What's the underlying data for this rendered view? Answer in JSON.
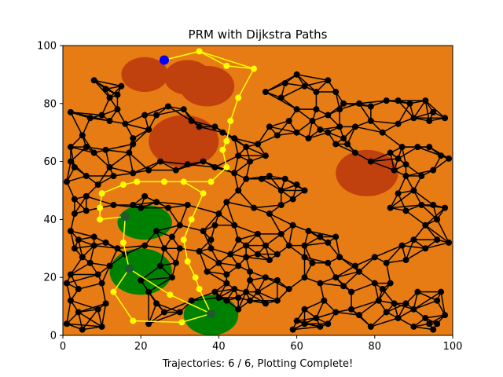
{
  "chart_data": {
    "type": "scatter",
    "title": "PRM with Dijkstra Paths",
    "xlabel": "Trajectories: 6 / 6, Plotting Complete!",
    "ylabel": "",
    "xlim": [
      0,
      100
    ],
    "ylim": [
      0,
      100
    ],
    "x_ticks": [
      "0",
      "20",
      "40",
      "60",
      "80",
      "100"
    ],
    "y_ticks": [
      "0",
      "20",
      "40",
      "60",
      "80",
      "100"
    ],
    "grid": false,
    "colors": {
      "background": "#e67c13",
      "obstacle": "#c0410e",
      "goal_region": "#008000",
      "roadmap": "#000000",
      "path": "#ffff00",
      "start": "#0000ff",
      "goal_node": "#1f5a2e"
    },
    "obstacles": [
      {
        "cx": 21,
        "cy": 90,
        "rx": 6,
        "ry": 6
      },
      {
        "cx": 32,
        "cy": 89,
        "rx": 6,
        "ry": 6
      },
      {
        "cx": 37,
        "cy": 86,
        "rx": 7,
        "ry": 7
      },
      {
        "cx": 31,
        "cy": 67,
        "rx": 9,
        "ry": 9
      },
      {
        "cx": 78,
        "cy": 56,
        "rx": 8,
        "ry": 8
      }
    ],
    "goal_regions": [
      {
        "cx": 21,
        "cy": 39,
        "rx": 7,
        "ry": 6
      },
      {
        "cx": 20,
        "cy": 22,
        "rx": 8,
        "ry": 8
      },
      {
        "cx": 38,
        "cy": 7,
        "rx": 7,
        "ry": 7
      }
    ],
    "start": {
      "x": 26,
      "y": 95
    },
    "goals": [
      {
        "x": 16,
        "y": 41
      },
      {
        "x": 17,
        "y": 23
      },
      {
        "x": 38,
        "y": 7.5
      }
    ],
    "path_nodes": [
      {
        "x": 26,
        "y": 95
      },
      {
        "x": 35,
        "y": 98
      },
      {
        "x": 42,
        "y": 93
      },
      {
        "x": 49,
        "y": 92
      },
      {
        "x": 45,
        "y": 82
      },
      {
        "x": 43,
        "y": 74
      },
      {
        "x": 42,
        "y": 67
      },
      {
        "x": 41,
        "y": 64
      },
      {
        "x": 42,
        "y": 58
      },
      {
        "x": 38,
        "y": 53
      },
      {
        "x": 31,
        "y": 53
      },
      {
        "x": 26,
        "y": 53
      },
      {
        "x": 19,
        "y": 53
      },
      {
        "x": 15.5,
        "y": 52
      },
      {
        "x": 10,
        "y": 49
      },
      {
        "x": 9.5,
        "y": 44
      },
      {
        "x": 9.5,
        "y": 40
      },
      {
        "x": 36,
        "y": 49
      },
      {
        "x": 33,
        "y": 40
      },
      {
        "x": 31,
        "y": 33
      },
      {
        "x": 32,
        "y": 25.5
      },
      {
        "x": 34,
        "y": 20
      },
      {
        "x": 35,
        "y": 16
      },
      {
        "x": 27.5,
        "y": 14
      },
      {
        "x": 15.5,
        "y": 32
      },
      {
        "x": 13,
        "y": 15
      },
      {
        "x": 18,
        "y": 5
      },
      {
        "x": 30.5,
        "y": 4.5
      }
    ],
    "paths": [
      [
        [
          26,
          95
        ],
        [
          35,
          98
        ],
        [
          42,
          93
        ],
        [
          49,
          92
        ],
        [
          45,
          82
        ],
        [
          43,
          74
        ],
        [
          42,
          67
        ],
        [
          41,
          64
        ],
        [
          42,
          58
        ],
        [
          38,
          53
        ],
        [
          31,
          53
        ],
        [
          26,
          53
        ],
        [
          19,
          53
        ],
        [
          15.5,
          52
        ],
        [
          10,
          49
        ],
        [
          9.5,
          44
        ],
        [
          9.5,
          40
        ],
        [
          16,
          41
        ]
      ],
      [
        [
          16,
          41
        ],
        [
          15.5,
          32
        ],
        [
          17,
          23
        ]
      ],
      [
        [
          31,
          53
        ],
        [
          36,
          49
        ],
        [
          33,
          40
        ],
        [
          31,
          33
        ],
        [
          32,
          25.5
        ],
        [
          34,
          20
        ],
        [
          35,
          16
        ],
        [
          38,
          7.5
        ]
      ],
      [
        [
          17,
          23
        ],
        [
          27.5,
          14
        ],
        [
          38,
          7.5
        ]
      ],
      [
        [
          17,
          23
        ],
        [
          13,
          15
        ],
        [
          18,
          5
        ],
        [
          30.5,
          4.5
        ],
        [
          38,
          7.5
        ]
      ],
      [
        [
          26,
          95
        ],
        [
          35,
          98
        ],
        [
          49,
          92
        ]
      ]
    ],
    "roadmap_nodes": [
      [
        8,
        88
      ],
      [
        11,
        85
      ],
      [
        12,
        82
      ],
      [
        14,
        83
      ],
      [
        15,
        86
      ],
      [
        14,
        78
      ],
      [
        10,
        76
      ],
      [
        7,
        75
      ],
      [
        2,
        77
      ],
      [
        5,
        69
      ],
      [
        2,
        65
      ],
      [
        6,
        65
      ],
      [
        8,
        63
      ],
      [
        11,
        64
      ],
      [
        12,
        58
      ],
      [
        17,
        63
      ],
      [
        18,
        66
      ],
      [
        16,
        73
      ],
      [
        12,
        74
      ],
      [
        21,
        76
      ],
      [
        22,
        71
      ],
      [
        18,
        68
      ],
      [
        24,
        76
      ],
      [
        27,
        79
      ],
      [
        31,
        78
      ],
      [
        33,
        74
      ],
      [
        35,
        72
      ],
      [
        39,
        72
      ],
      [
        41,
        70
      ],
      [
        44,
        68
      ],
      [
        47,
        65
      ],
      [
        45,
        62
      ],
      [
        48,
        60
      ],
      [
        52,
        62
      ],
      [
        50,
        66
      ],
      [
        55,
        69
      ],
      [
        53,
        72
      ],
      [
        58,
        74
      ],
      [
        60,
        70
      ],
      [
        63,
        68
      ],
      [
        66,
        71
      ],
      [
        64,
        74
      ],
      [
        60,
        78
      ],
      [
        56,
        82
      ],
      [
        52,
        84
      ],
      [
        57,
        87
      ],
      [
        60,
        90
      ],
      [
        62,
        86
      ],
      [
        65,
        84
      ],
      [
        68,
        88
      ],
      [
        70,
        84
      ],
      [
        72,
        80
      ],
      [
        76,
        80
      ],
      [
        79,
        79
      ],
      [
        83,
        81
      ],
      [
        86,
        81
      ],
      [
        89,
        80
      ],
      [
        93,
        81
      ],
      [
        95,
        77
      ],
      [
        98,
        75
      ],
      [
        94,
        74
      ],
      [
        90,
        75
      ],
      [
        86,
        73
      ],
      [
        82,
        70
      ],
      [
        79,
        74
      ],
      [
        75,
        72
      ],
      [
        71,
        72
      ],
      [
        68,
        70
      ],
      [
        65,
        78
      ],
      [
        68,
        76
      ],
      [
        71,
        78
      ],
      [
        73,
        66
      ],
      [
        70,
        66
      ],
      [
        72,
        68
      ],
      [
        75,
        63
      ],
      [
        79,
        60
      ],
      [
        84,
        63
      ],
      [
        87,
        65
      ],
      [
        91,
        65
      ],
      [
        94,
        65
      ],
      [
        97,
        62
      ],
      [
        99,
        61
      ],
      [
        95,
        57
      ],
      [
        92,
        55
      ],
      [
        88,
        55
      ],
      [
        85,
        57
      ],
      [
        86,
        61
      ],
      [
        88,
        59
      ],
      [
        90,
        50
      ],
      [
        86,
        49
      ],
      [
        84,
        44
      ],
      [
        88,
        43
      ],
      [
        92,
        45
      ],
      [
        95,
        45
      ],
      [
        98,
        44
      ],
      [
        96,
        40
      ],
      [
        93,
        38
      ],
      [
        90,
        33
      ],
      [
        87,
        31
      ],
      [
        93,
        30
      ],
      [
        96,
        33
      ],
      [
        99,
        32
      ],
      [
        88,
        26
      ],
      [
        83,
        25
      ],
      [
        80,
        27
      ],
      [
        76,
        22
      ],
      [
        80,
        18
      ],
      [
        82,
        16
      ],
      [
        84,
        18
      ],
      [
        81,
        12
      ],
      [
        85,
        11
      ],
      [
        88,
        11
      ],
      [
        91,
        15
      ],
      [
        90,
        9
      ],
      [
        93,
        6
      ],
      [
        94,
        4
      ],
      [
        96,
        4
      ],
      [
        98,
        7
      ],
      [
        96,
        12
      ],
      [
        97,
        15
      ],
      [
        95,
        2
      ],
      [
        90,
        3
      ],
      [
        86,
        6
      ],
      [
        83,
        8
      ],
      [
        79,
        3
      ],
      [
        76,
        7
      ],
      [
        74,
        9
      ],
      [
        70,
        8
      ],
      [
        67,
        12
      ],
      [
        68,
        4
      ],
      [
        65,
        6
      ],
      [
        62,
        9
      ],
      [
        60,
        5
      ],
      [
        59,
        2
      ],
      [
        62,
        4
      ],
      [
        66,
        3
      ],
      [
        55,
        12
      ],
      [
        52,
        11
      ],
      [
        48,
        12
      ],
      [
        45,
        13
      ],
      [
        42,
        12
      ],
      [
        40,
        13
      ],
      [
        45,
        9
      ],
      [
        50,
        15
      ],
      [
        55,
        19
      ],
      [
        58,
        16
      ],
      [
        62,
        20
      ],
      [
        66,
        18
      ],
      [
        70,
        20
      ],
      [
        72,
        17
      ],
      [
        74,
        15
      ],
      [
        75,
        24
      ],
      [
        71,
        27
      ],
      [
        68,
        25
      ],
      [
        64,
        25
      ],
      [
        62,
        27
      ],
      [
        58,
        31
      ],
      [
        56,
        35
      ],
      [
        59,
        38
      ],
      [
        63,
        36
      ],
      [
        68,
        32
      ],
      [
        70,
        34
      ],
      [
        66,
        34
      ],
      [
        62,
        31
      ],
      [
        55,
        28
      ],
      [
        52,
        31
      ],
      [
        50,
        35
      ],
      [
        47,
        31
      ],
      [
        45,
        33
      ],
      [
        44,
        38
      ],
      [
        40,
        42
      ],
      [
        42,
        46
      ],
      [
        45,
        50
      ],
      [
        49,
        44
      ],
      [
        53,
        42
      ],
      [
        56,
        45
      ],
      [
        59,
        47
      ],
      [
        62,
        50
      ],
      [
        60,
        52
      ],
      [
        57,
        54
      ],
      [
        53,
        55
      ],
      [
        51,
        54
      ],
      [
        56,
        50
      ],
      [
        47,
        54
      ],
      [
        44,
        56
      ],
      [
        39,
        58
      ],
      [
        36,
        60
      ],
      [
        32,
        59
      ],
      [
        29,
        57
      ],
      [
        25,
        60
      ],
      [
        22,
        57
      ],
      [
        18,
        56
      ],
      [
        13,
        55
      ],
      [
        9,
        52
      ],
      [
        6,
        55
      ],
      [
        3,
        58
      ],
      [
        2,
        60
      ],
      [
        1,
        53
      ],
      [
        3,
        47
      ],
      [
        6,
        48
      ],
      [
        6,
        43
      ],
      [
        3,
        42
      ],
      [
        2,
        36
      ],
      [
        4,
        33
      ],
      [
        8,
        31
      ],
      [
        3,
        30
      ],
      [
        8,
        34
      ],
      [
        11,
        32
      ],
      [
        14,
        30
      ],
      [
        16,
        28
      ],
      [
        21,
        31
      ],
      [
        24,
        36
      ],
      [
        26,
        30
      ],
      [
        28,
        34
      ],
      [
        30,
        30
      ],
      [
        35,
        29
      ],
      [
        38,
        30
      ],
      [
        40,
        25
      ],
      [
        37,
        22
      ],
      [
        42,
        21
      ],
      [
        45,
        24
      ],
      [
        48,
        22
      ],
      [
        50,
        28
      ],
      [
        53,
        26
      ],
      [
        47,
        27
      ],
      [
        43,
        28
      ],
      [
        42,
        18
      ],
      [
        39,
        15
      ],
      [
        44,
        16
      ],
      [
        47,
        15
      ],
      [
        48,
        19
      ],
      [
        52,
        20
      ],
      [
        2,
        21
      ],
      [
        1,
        18
      ],
      [
        4,
        16
      ],
      [
        2,
        12
      ],
      [
        4,
        8
      ],
      [
        1,
        4
      ],
      [
        5,
        2
      ],
      [
        10,
        3
      ],
      [
        9,
        9
      ],
      [
        11,
        11
      ],
      [
        10,
        18
      ],
      [
        9,
        21
      ],
      [
        12,
        24
      ],
      [
        7,
        25
      ],
      [
        5,
        27
      ],
      [
        20,
        19
      ],
      [
        22,
        15
      ],
      [
        24,
        11
      ],
      [
        26,
        8
      ],
      [
        22,
        4
      ],
      [
        30,
        8
      ],
      [
        33,
        12
      ],
      [
        28,
        20
      ],
      [
        25,
        24
      ],
      [
        29,
        25
      ],
      [
        30,
        38
      ],
      [
        27,
        44
      ],
      [
        24,
        46
      ],
      [
        21,
        48
      ],
      [
        18,
        45
      ],
      [
        13,
        45
      ],
      [
        20,
        44
      ],
      [
        32,
        45
      ],
      [
        36,
        36
      ],
      [
        38,
        33
      ],
      [
        39,
        38
      ]
    ]
  }
}
